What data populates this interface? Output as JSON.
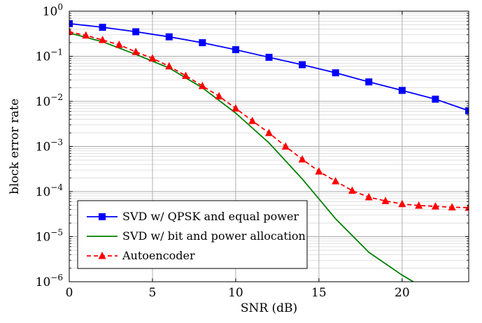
{
  "chart_data": {
    "type": "line",
    "xlabel": "SNR (dB)",
    "ylabel": "block error rate",
    "xlim": [
      0,
      24
    ],
    "ylim": [
      1e-06,
      1
    ],
    "y_scale": "log",
    "grid": true,
    "legend_placement": "bottom-left",
    "x_ticks": [
      0,
      5,
      10,
      15,
      20
    ],
    "x_tick_labels": [
      "0",
      "5",
      "10",
      "15",
      "20"
    ],
    "y_ticks": [
      {
        "value": 1,
        "base": "10",
        "exp": "0"
      },
      {
        "value": 0.1,
        "base": "10",
        "exp": "−1"
      },
      {
        "value": 0.01,
        "base": "10",
        "exp": "−2"
      },
      {
        "value": 0.001,
        "base": "10",
        "exp": "−3"
      },
      {
        "value": 0.0001,
        "base": "10",
        "exp": "−4"
      },
      {
        "value": 1e-05,
        "base": "10",
        "exp": "−5"
      },
      {
        "value": 1e-06,
        "base": "10",
        "exp": "−6"
      }
    ],
    "series": [
      {
        "name": "SVD w/ QPSK and equal power",
        "color": "#0000ff",
        "line_style": "solid",
        "marker": "square",
        "x": [
          0,
          2,
          4,
          6,
          8,
          10,
          12,
          14,
          16,
          18,
          20,
          22,
          24
        ],
        "y": [
          0.53,
          0.44,
          0.35,
          0.27,
          0.2,
          0.14,
          0.095,
          0.065,
          0.043,
          0.027,
          0.0175,
          0.0112,
          0.0062
        ]
      },
      {
        "name": "SVD w/ bit and power allocation",
        "color": "#008000",
        "line_style": "solid",
        "marker": "none",
        "x": [
          0,
          2,
          4,
          6,
          8,
          10,
          12,
          14,
          16,
          18,
          20,
          21
        ],
        "y": [
          0.33,
          0.21,
          0.11,
          0.055,
          0.02,
          0.0055,
          0.0012,
          0.00019,
          2.5e-05,
          4.5e-06,
          1.4e-06,
          8.5e-07
        ]
      },
      {
        "name": "Autoencoder",
        "color": "#ff0000",
        "line_style": "dashed",
        "marker": "triangle",
        "x": [
          0,
          1,
          2,
          3,
          4,
          5,
          6,
          7,
          8,
          9,
          10,
          11,
          12,
          13,
          14,
          15,
          16,
          17,
          18,
          19,
          20,
          21,
          22,
          23,
          24
        ],
        "y": [
          0.35,
          0.29,
          0.23,
          0.18,
          0.125,
          0.09,
          0.06,
          0.037,
          0.022,
          0.013,
          0.007,
          0.0037,
          0.002,
          0.001,
          0.00052,
          0.00028,
          0.00017,
          0.000105,
          7.5e-05,
          6.2e-05,
          5.3e-05,
          4.9e-05,
          4.7e-05,
          4.5e-05,
          4.4e-05
        ]
      }
    ]
  }
}
